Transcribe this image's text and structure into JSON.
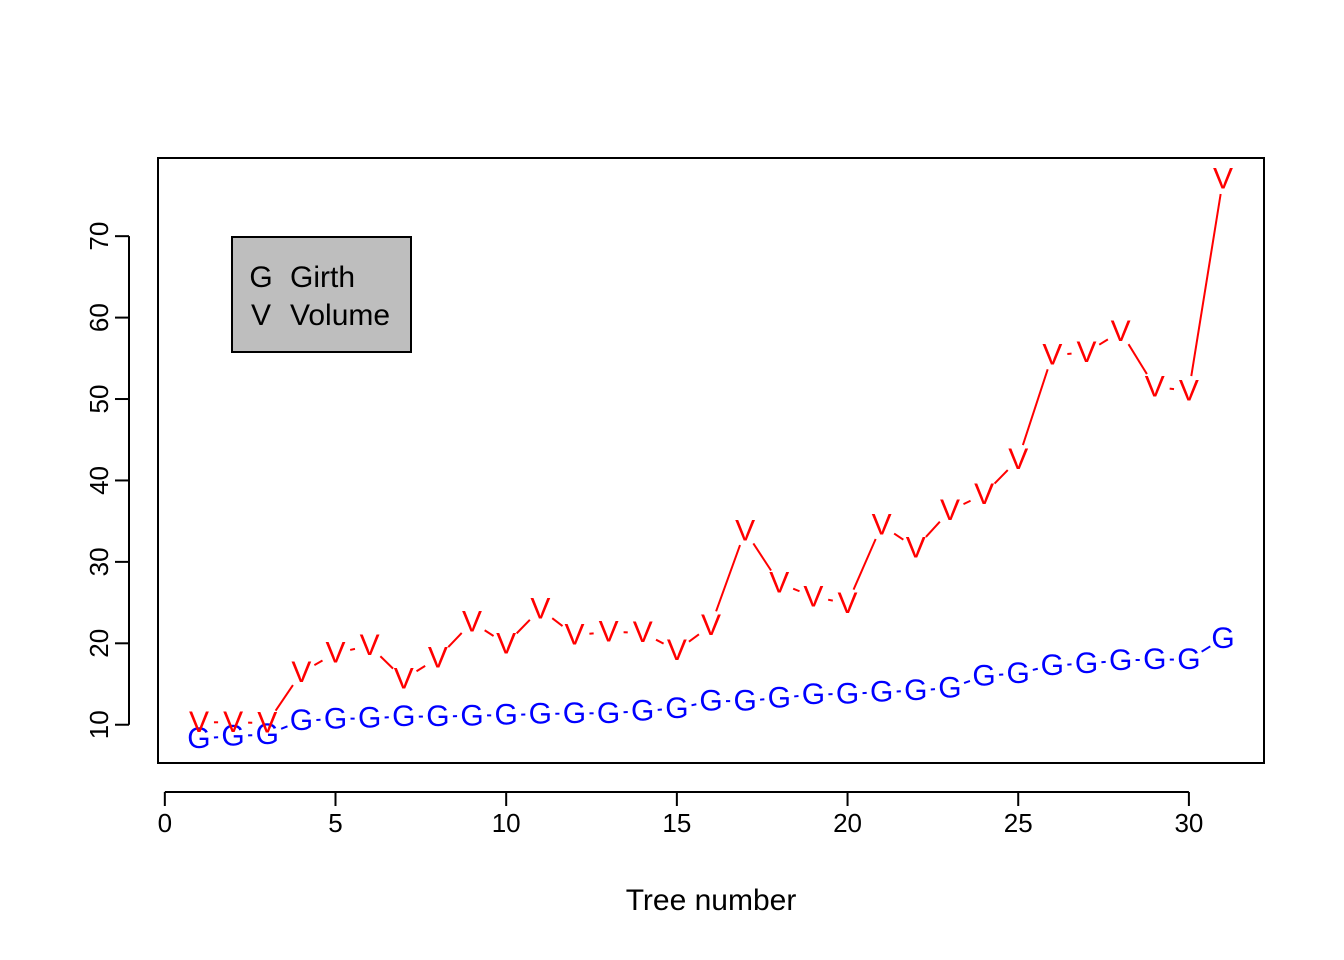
{
  "chart_data": {
    "type": "line",
    "title": "",
    "xlabel": "Tree number",
    "ylabel": "",
    "xlim": [
      -0.2,
      32.2
    ],
    "ylim": [
      5.3,
      79.6
    ],
    "x_ticks": [
      0,
      5,
      10,
      15,
      20,
      25,
      30
    ],
    "y_ticks": [
      10,
      20,
      30,
      40,
      50,
      60,
      70
    ],
    "x": [
      1,
      2,
      3,
      4,
      5,
      6,
      7,
      8,
      9,
      10,
      11,
      12,
      13,
      14,
      15,
      16,
      17,
      18,
      19,
      20,
      21,
      22,
      23,
      24,
      25,
      26,
      27,
      28,
      29,
      30,
      31
    ],
    "series": [
      {
        "name": "Girth",
        "symbol": "G",
        "color": "#0000ff",
        "values": [
          8.3,
          8.6,
          8.8,
          10.5,
          10.7,
          10.8,
          11.0,
          11.0,
          11.1,
          11.2,
          11.3,
          11.4,
          11.4,
          11.7,
          12.0,
          12.9,
          12.9,
          13.3,
          13.7,
          13.8,
          14.0,
          14.2,
          14.5,
          16.0,
          16.3,
          17.3,
          17.5,
          17.9,
          18.0,
          18.0,
          20.6
        ]
      },
      {
        "name": "Volume",
        "symbol": "V",
        "color": "#ff0000",
        "values": [
          10.3,
          10.3,
          10.2,
          16.4,
          18.8,
          19.7,
          15.6,
          18.2,
          22.6,
          19.9,
          24.2,
          21.0,
          21.4,
          21.3,
          19.1,
          22.2,
          33.8,
          27.4,
          25.7,
          24.9,
          34.5,
          31.7,
          36.3,
          38.3,
          42.6,
          55.4,
          55.7,
          58.3,
          51.5,
          51.0,
          77.0
        ]
      }
    ],
    "legend": {
      "position": "top-left",
      "background": "#bebebe",
      "items": [
        {
          "symbol": "G",
          "label": "Girth",
          "color": "#0000ff"
        },
        {
          "symbol": "V",
          "label": "Volume",
          "color": "#ff0000"
        }
      ]
    }
  }
}
